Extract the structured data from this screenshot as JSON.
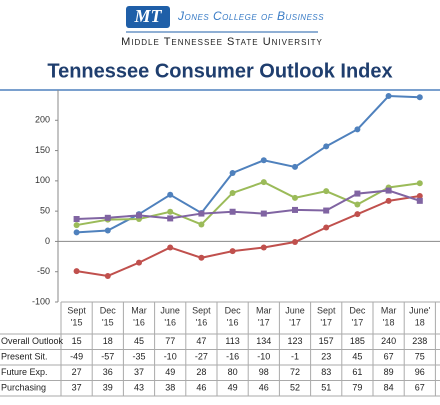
{
  "header": {
    "college": "Jones College of Business",
    "university": "Middle Tennessee State University"
  },
  "chart_data": {
    "type": "line",
    "title": "Tennessee Consumer Outlook Index",
    "categories": [
      [
        "Sept",
        "'15"
      ],
      [
        "Dec",
        "'15"
      ],
      [
        "Mar",
        "'16"
      ],
      [
        "June",
        "'16"
      ],
      [
        "Sept",
        "'16"
      ],
      [
        "Dec",
        "'16"
      ],
      [
        "Mar",
        "'17"
      ],
      [
        "June",
        "'17"
      ],
      [
        "Sept",
        "'17"
      ],
      [
        "Dec",
        "'17"
      ],
      [
        "Mar",
        "'18"
      ],
      [
        "June'",
        "18"
      ]
    ],
    "series": [
      {
        "name": "Overall Outlook",
        "color": "#4f81bd",
        "values": [
          15,
          18,
          45,
          77,
          47,
          113,
          134,
          123,
          157,
          185,
          240,
          238
        ]
      },
      {
        "name": "Present Sit.",
        "color": "#c0504d",
        "values": [
          -49,
          -57,
          -35,
          -10,
          -27,
          -16,
          -10,
          -1,
          23,
          45,
          67,
          75
        ]
      },
      {
        "name": "Future Exp.",
        "color": "#9bbb59",
        "values": [
          27,
          36,
          37,
          49,
          28,
          80,
          98,
          72,
          83,
          61,
          89,
          96
        ]
      },
      {
        "name": "Purchasing",
        "color": "#8064a2",
        "values": [
          37,
          39,
          43,
          38,
          46,
          49,
          46,
          52,
          51,
          79,
          84,
          67
        ]
      }
    ],
    "ylim": [
      -100,
      250
    ],
    "yticks": [
      -100,
      -50,
      0,
      50,
      100,
      150,
      200
    ]
  }
}
